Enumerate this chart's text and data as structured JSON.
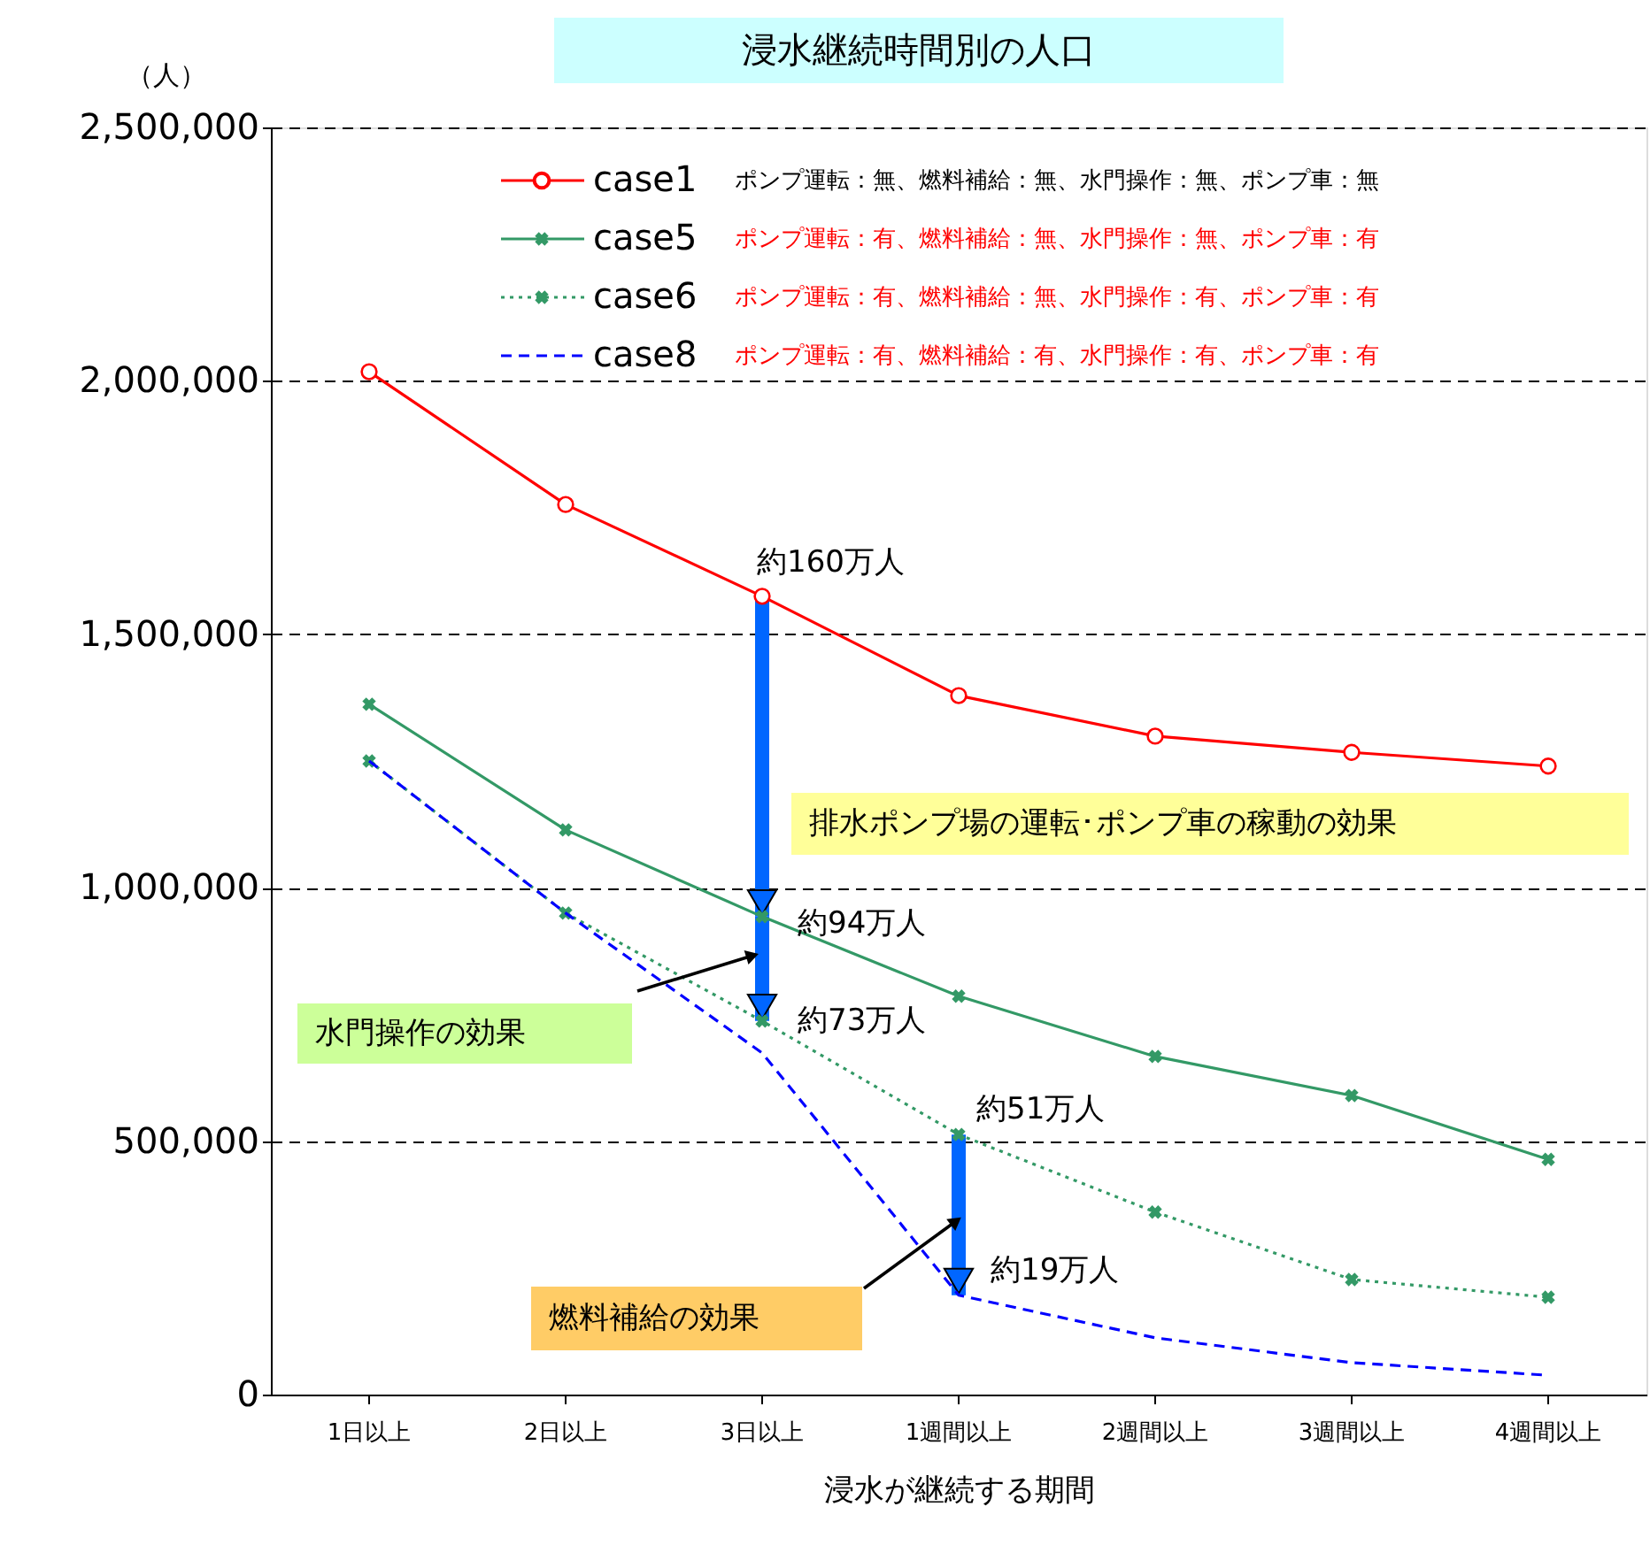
{
  "chart_data": {
    "type": "line",
    "title": "浸水継続時間別の人口",
    "xlabel": "浸水が継続する期間",
    "ylabel": "（人）",
    "categories": [
      "1日以上",
      "2日以上",
      "3日以上",
      "1週間以上",
      "2週間以上",
      "3週間以上",
      "4週間以上"
    ],
    "ylim": [
      0,
      2500000
    ],
    "yticks": [
      0,
      {
        "value": 500000,
        "label": "500,000"
      },
      {
        "value": 1000000,
        "label": "1,000,000"
      },
      {
        "value": 1500000,
        "label": "1,500,000"
      },
      {
        "value": 2000000,
        "label": "2,000,000"
      },
      {
        "value": 2500000,
        "label": "2,500,000"
      }
    ],
    "grid": "y",
    "legend": "top",
    "series": [
      {
        "name": "case1",
        "color": "#ff0000",
        "marker": "circle",
        "line_style": "solid",
        "values": [
          2018000,
          1756000,
          1575000,
          1379000,
          1299000,
          1267000,
          1240000
        ]
      },
      {
        "name": "case5",
        "color": "#339966",
        "marker": "cross",
        "line_style": "solid",
        "values": [
          1362000,
          1114000,
          943000,
          786000,
          667000,
          590000,
          464000
        ]
      },
      {
        "name": "case6",
        "color": "#339966",
        "marker": "cross",
        "line_style": "dotted",
        "values": [
          1250000,
          950000,
          737000,
          513000,
          360000,
          227000,
          192000
        ]
      },
      {
        "name": "case8",
        "color": "#0000ff",
        "marker": "none",
        "line_style": "dashed",
        "values": [
          1250000,
          950000,
          674000,
          196000,
          112000,
          63000,
          38000
        ]
      }
    ],
    "annotations": [
      "ポンプ運転：無、燃料補給：無、水門操作：無、ポンプ車：無",
      "ポンプ運転：有、燃料補給：無、水門操作：無、ポンプ車：有",
      "ポンプ運転：有、燃料補給：無、水門操作：有、ポンプ車：有",
      "ポンプ運転：有、燃料補給：有、水門操作：有、ポンプ車：有",
      "排水ポンプ場の運転･ポンプ車の稼動の効果",
      "水門操作の効果",
      "燃料補給の効果",
      {
        "text": "約160万人",
        "x": "3日以上",
        "y": 1575000
      },
      {
        "text": "約94万人",
        "x": "3日以上",
        "y": 943000
      },
      {
        "text": "約73万人",
        "x": "3日以上",
        "y": 737000
      },
      {
        "text": "約51万人",
        "x": "1週間以上",
        "y": 513000
      },
      {
        "text": "約19万人",
        "x": "1週間以上",
        "y": 196000
      }
    ]
  }
}
